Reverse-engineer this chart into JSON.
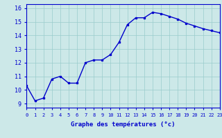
{
  "x": [
    0,
    1,
    2,
    3,
    4,
    5,
    6,
    7,
    8,
    9,
    10,
    11,
    12,
    13,
    14,
    15,
    16,
    17,
    18,
    19,
    20,
    21,
    22,
    23
  ],
  "y": [
    10.3,
    9.2,
    9.4,
    10.8,
    11.0,
    10.5,
    10.5,
    12.0,
    12.2,
    12.2,
    12.6,
    13.5,
    14.8,
    15.3,
    15.3,
    15.7,
    15.6,
    15.4,
    15.2,
    14.9,
    14.7,
    14.5,
    14.35,
    14.2
  ],
  "xlim": [
    0,
    23
  ],
  "ylim": [
    8.7,
    16.3
  ],
  "yticks": [
    9,
    10,
    11,
    12,
    13,
    14,
    15,
    16
  ],
  "xticks": [
    0,
    1,
    2,
    3,
    4,
    5,
    6,
    7,
    8,
    9,
    10,
    11,
    12,
    13,
    14,
    15,
    16,
    17,
    18,
    19,
    20,
    21,
    22,
    23
  ],
  "xlabel": "Graphe des températures (°c)",
  "line_color": "#0000cc",
  "marker": "s",
  "marker_size": 2.0,
  "bg_color": "#cce8e8",
  "grid_color": "#99cccc",
  "axis_label_color": "#0000cc",
  "tick_label_color": "#0000cc",
  "line_width": 1.0,
  "xtick_fontsize": 5.0,
  "ytick_fontsize": 6.0,
  "xlabel_fontsize": 6.5
}
